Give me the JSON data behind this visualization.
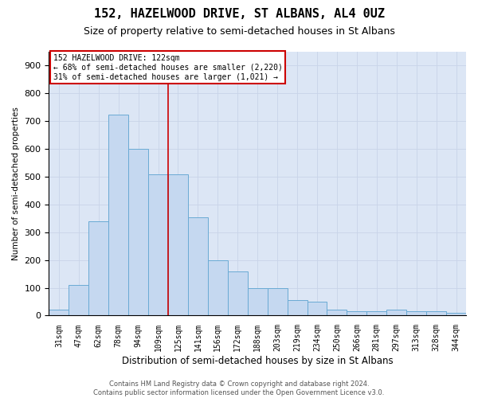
{
  "title": "152, HAZELWOOD DRIVE, ST ALBANS, AL4 0UZ",
  "subtitle": "Size of property relative to semi-detached houses in St Albans",
  "xlabel": "Distribution of semi-detached houses by size in St Albans",
  "ylabel": "Number of semi-detached properties",
  "categories": [
    "31sqm",
    "47sqm",
    "62sqm",
    "78sqm",
    "94sqm",
    "109sqm",
    "125sqm",
    "141sqm",
    "156sqm",
    "172sqm",
    "188sqm",
    "203sqm",
    "219sqm",
    "234sqm",
    "250sqm",
    "266sqm",
    "281sqm",
    "297sqm",
    "313sqm",
    "328sqm",
    "344sqm"
  ],
  "values": [
    20,
    110,
    340,
    725,
    600,
    510,
    510,
    355,
    200,
    160,
    100,
    100,
    55,
    50,
    20,
    15,
    15,
    20,
    15,
    15,
    10
  ],
  "bar_color": "#c5d8f0",
  "bar_edge_color": "#6aaad4",
  "vline_index": 6,
  "annotation_title": "152 HAZELWOOD DRIVE: 122sqm",
  "annotation_line1": "← 68% of semi-detached houses are smaller (2,220)",
  "annotation_line2": "31% of semi-detached houses are larger (1,021) →",
  "annotation_box_color": "#ffffff",
  "annotation_box_edge_color": "#cc0000",
  "vline_color": "#cc0000",
  "grid_color": "#c8d4e8",
  "background_color": "#dce6f5",
  "title_fontsize": 11,
  "subtitle_fontsize": 9,
  "footer_text": "Contains HM Land Registry data © Crown copyright and database right 2024.\nContains public sector information licensed under the Open Government Licence v3.0.",
  "ylim": [
    0,
    950
  ],
  "yticks": [
    0,
    100,
    200,
    300,
    400,
    500,
    600,
    700,
    800,
    900
  ]
}
